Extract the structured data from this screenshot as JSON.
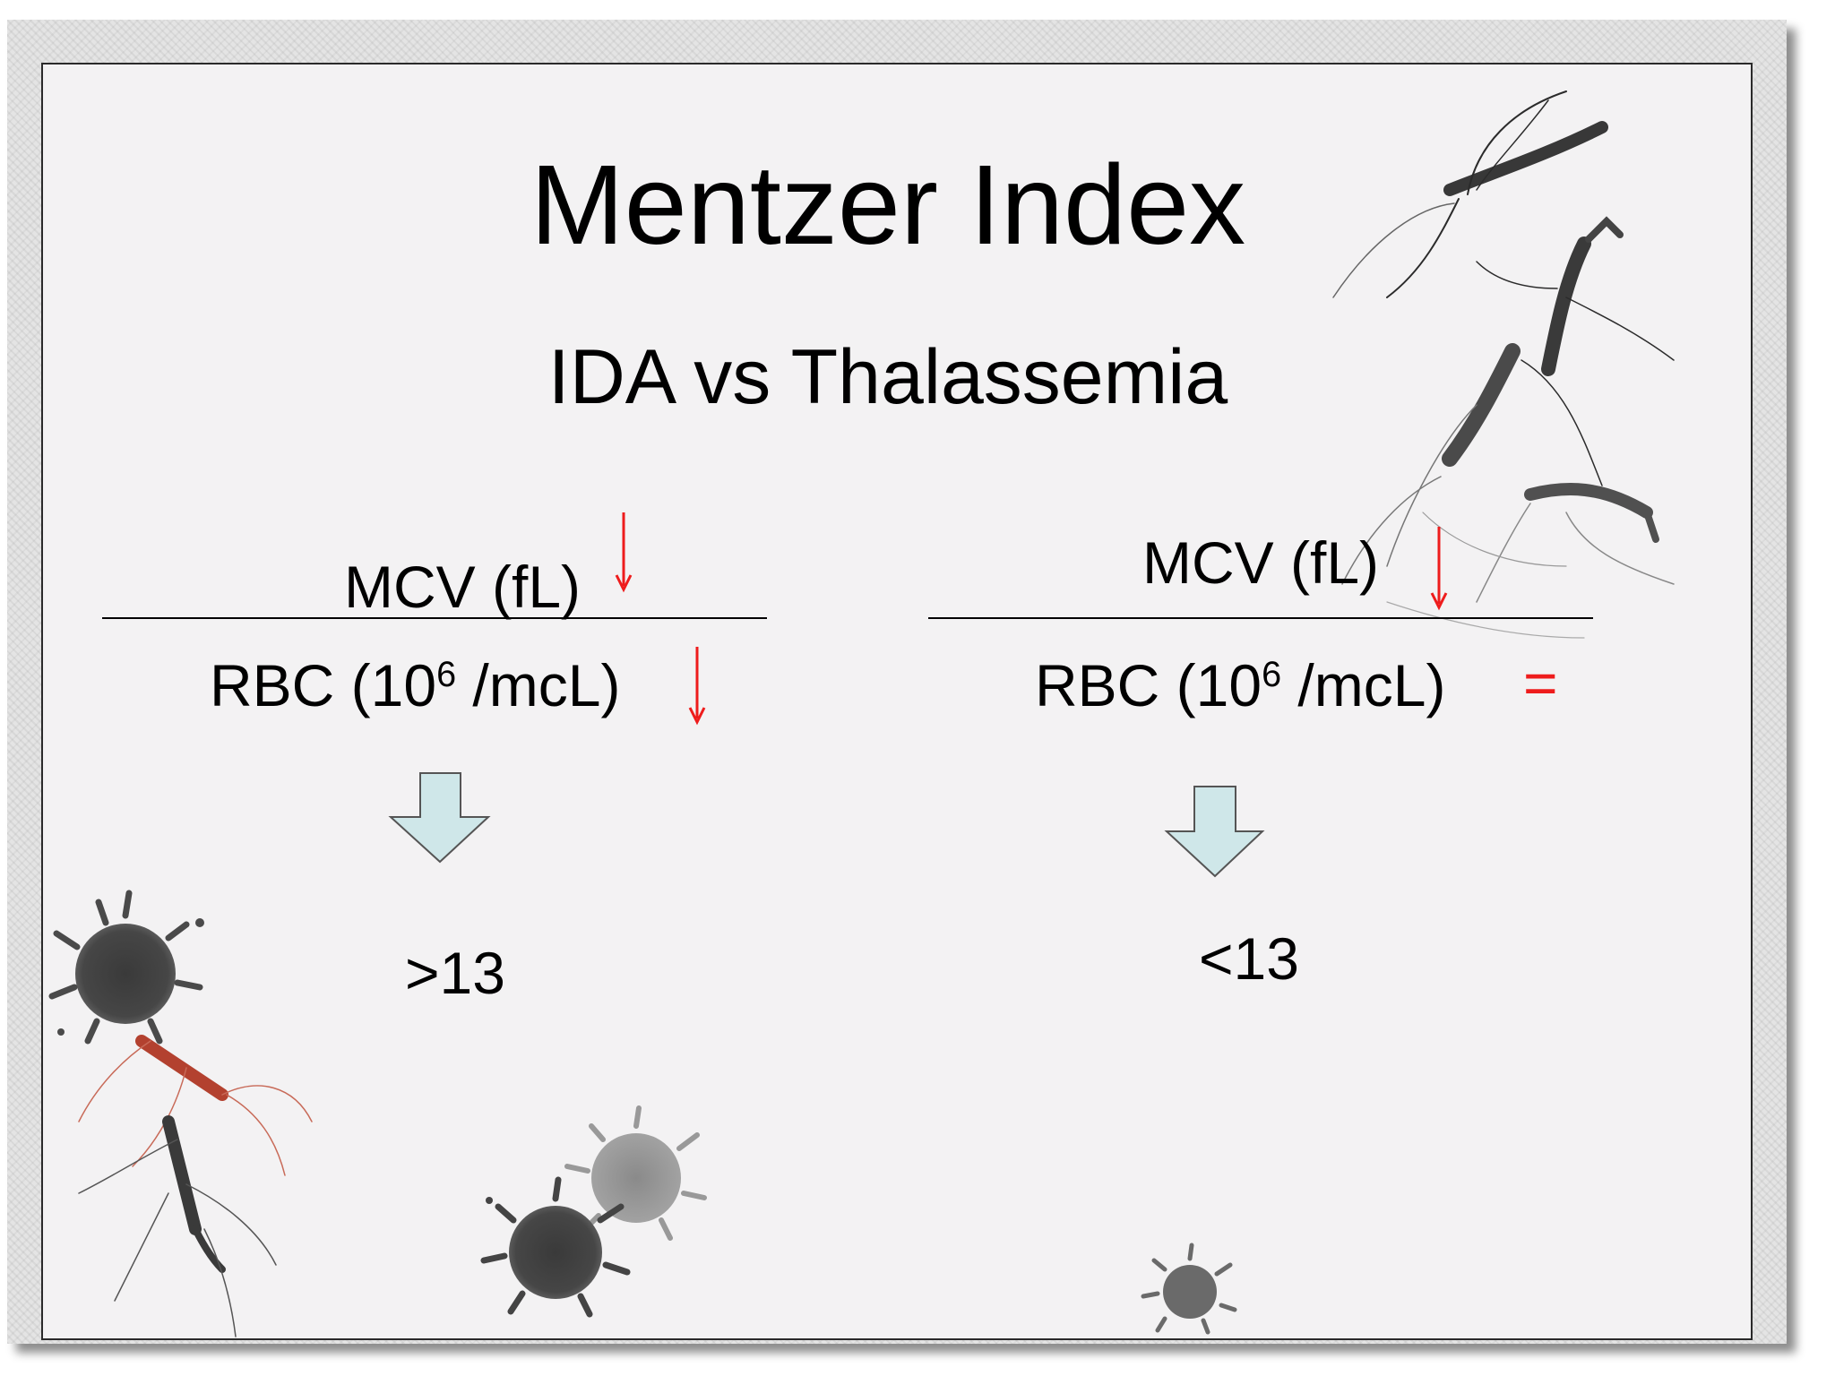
{
  "slide": {
    "title": "Mentzer Index",
    "subtitle": "IDA vs Thalassemia"
  },
  "left": {
    "numerator": "MCV (fL)",
    "denominator_prefix": "RBC (10",
    "denominator_exp": "6",
    "denominator_suffix": " /mcL)",
    "numerator_indicator": "decreased-arrow-icon",
    "denominator_indicator": "decreased-arrow-icon",
    "result": ">13"
  },
  "right": {
    "numerator": "MCV (fL)",
    "denominator_prefix": "RBC (10",
    "denominator_exp": "6",
    "denominator_suffix": " /mcL)",
    "numerator_indicator": "decreased-arrow-icon",
    "denominator_indicator": "=",
    "result": "<13"
  },
  "colors": {
    "indicator": "#ee1c1c",
    "result_arrow_fill": "#cfe7e9",
    "slide_background": "#f3f2f3",
    "frame_border": "#2a2a2a"
  }
}
